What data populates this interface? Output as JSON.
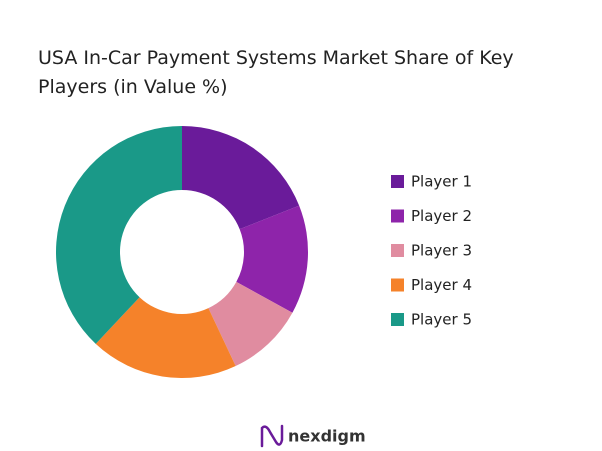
{
  "chart_data": {
    "type": "donut",
    "title": "USA In-Car Payment Systems Market Share of Key Players (in Value %)",
    "categories": [
      "Player 1",
      "Player 2",
      "Player 3",
      "Player 4",
      "Player 5"
    ],
    "values": [
      19,
      14,
      10,
      19,
      38
    ],
    "colors": [
      "#6a1b9a",
      "#8e24aa",
      "#e08ca0",
      "#f5822a",
      "#1a9988"
    ],
    "legend": "right"
  },
  "logo": "nexdigm"
}
